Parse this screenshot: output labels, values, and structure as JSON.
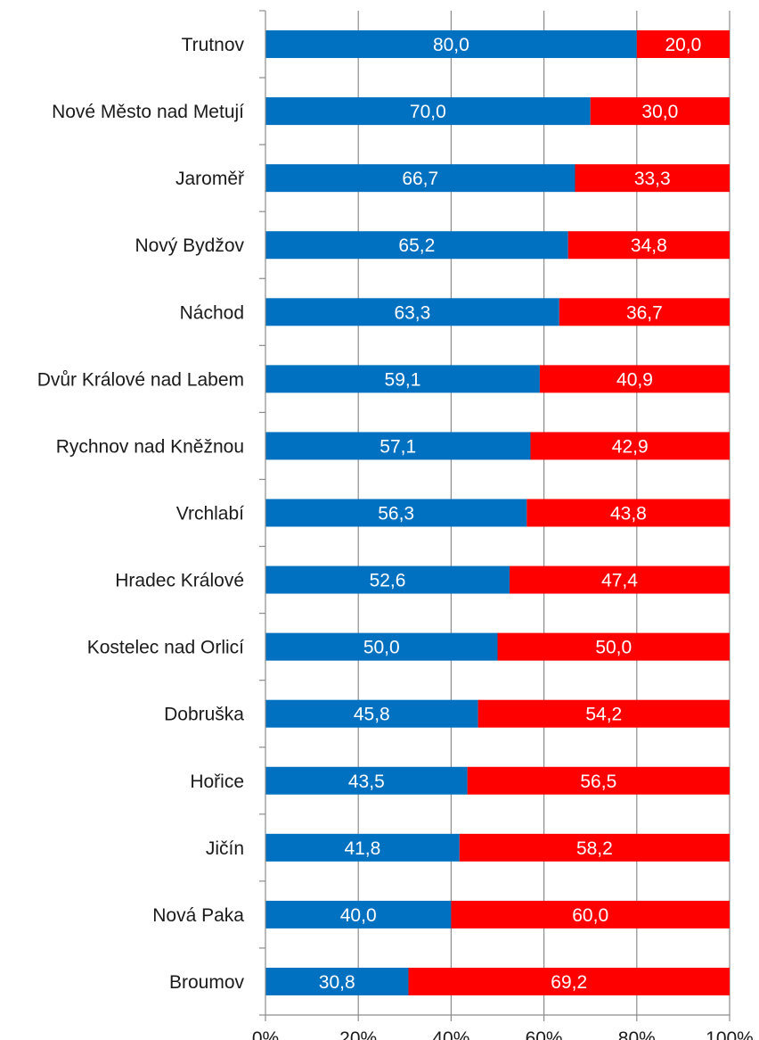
{
  "chart_data": {
    "type": "bar",
    "orientation": "horizontal",
    "stacked": "percent",
    "categories": [
      "Trutnov",
      "Nové Město nad Metují",
      "Jaroměř",
      "Nový Bydžov",
      "Náchod",
      "Dvůr Králové nad Labem",
      "Rychnov nad Kněžnou",
      "Vrchlabí",
      "Hradec Králové",
      "Kostelec nad Orlicí",
      "Dobruška",
      "Hořice",
      "Jičín",
      "Nová Paka",
      "Broumov"
    ],
    "series": [
      {
        "color": "#0070c0",
        "values": [
          80.0,
          70.0,
          66.7,
          65.2,
          63.3,
          59.1,
          57.1,
          56.3,
          52.6,
          50.0,
          45.8,
          43.5,
          41.8,
          40.0,
          30.8
        ],
        "labels": [
          "80,0",
          "70,0",
          "66,7",
          "65,2",
          "63,3",
          "59,1",
          "57,1",
          "56,3",
          "52,6",
          "50,0",
          "45,8",
          "43,5",
          "41,8",
          "40,0",
          "30,8"
        ]
      },
      {
        "color": "#ff0000",
        "values": [
          20.0,
          30.0,
          33.3,
          34.8,
          36.7,
          40.9,
          42.9,
          43.8,
          47.4,
          50.0,
          54.2,
          56.5,
          58.2,
          60.0,
          69.2
        ],
        "labels": [
          "20,0",
          "30,0",
          "33,3",
          "34,8",
          "36,7",
          "40,9",
          "42,9",
          "43,8",
          "47,4",
          "50,0",
          "54,2",
          "56,5",
          "58,2",
          "60,0",
          "69,2"
        ]
      }
    ],
    "x_ticks": [
      "0%",
      "20%",
      "40%",
      "60%",
      "80%",
      "100%"
    ],
    "xlim": [
      0,
      100
    ],
    "grid": "vertical",
    "legend": "none",
    "title": "",
    "xlabel": "",
    "ylabel": ""
  }
}
